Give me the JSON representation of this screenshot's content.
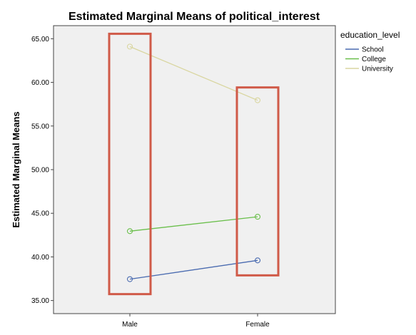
{
  "chart_data": {
    "type": "line",
    "title": "Estimated Marginal Means of political_interest",
    "xlabel": "",
    "ylabel": "Estimated Marginal Means",
    "categories": [
      "Male",
      "Female"
    ],
    "yticks": [
      "35.00",
      "40.00",
      "45.00",
      "50.00",
      "55.00",
      "60.00",
      "65.00"
    ],
    "ylim": [
      33.5,
      66.5
    ],
    "legend": {
      "title": "education_level",
      "placement": "top-right, outside plot"
    },
    "series": [
      {
        "name": "School",
        "values": [
          37.45,
          39.6
        ],
        "color": "#4a6bb0"
      },
      {
        "name": "College",
        "values": [
          42.95,
          44.6
        ],
        "color": "#6abf4b"
      },
      {
        "name": "University",
        "values": [
          64.1,
          57.95
        ],
        "color": "#d9d6a0"
      }
    ],
    "annotations": [
      {
        "type": "highlight-box",
        "around": "Male",
        "color": "#d05a48"
      },
      {
        "type": "highlight-box",
        "around": "Female",
        "color": "#d05a48"
      }
    ],
    "grid": false,
    "plot_background": "#f0f0f0"
  }
}
